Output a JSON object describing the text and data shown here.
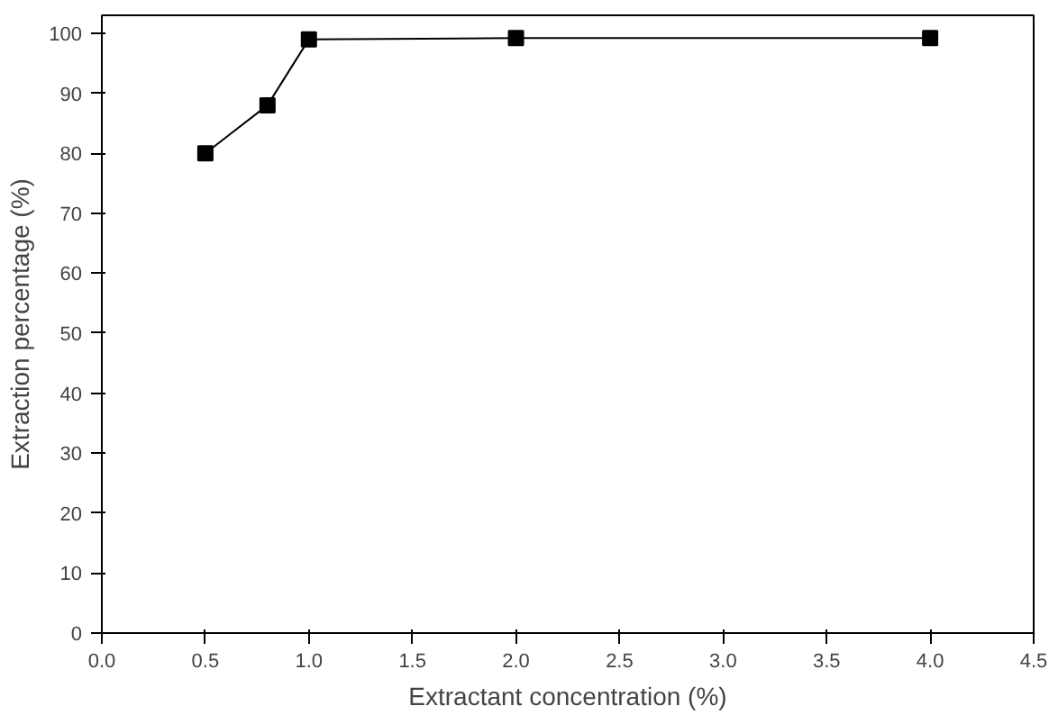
{
  "chart_data": {
    "type": "line",
    "xlabel": "Extractant concentration (%)",
    "ylabel": "Extraction percentage (%)",
    "x": [
      0.5,
      0.8,
      1.0,
      2.0,
      4.0
    ],
    "series": [
      {
        "color": "#000000",
        "values": [
          80,
          88,
          99,
          99.2,
          99.2
        ]
      }
    ],
    "xlim": [
      0,
      4.5
    ],
    "ylim": [
      0,
      103
    ],
    "xticks": [
      {
        "value": 0,
        "label": "0.0"
      },
      0.5,
      {
        "value": 1,
        "label": "1.0"
      },
      1.5,
      {
        "value": 2,
        "label": "2.0"
      },
      2.5,
      {
        "value": 3,
        "label": "3.0"
      },
      3.5,
      {
        "value": 4,
        "label": "4.0"
      },
      4.5
    ],
    "yticks": [
      0,
      10,
      20,
      30,
      40,
      50,
      60,
      70,
      80,
      90,
      100
    ],
    "marker": "square",
    "line_style": "solid",
    "grid": false
  }
}
